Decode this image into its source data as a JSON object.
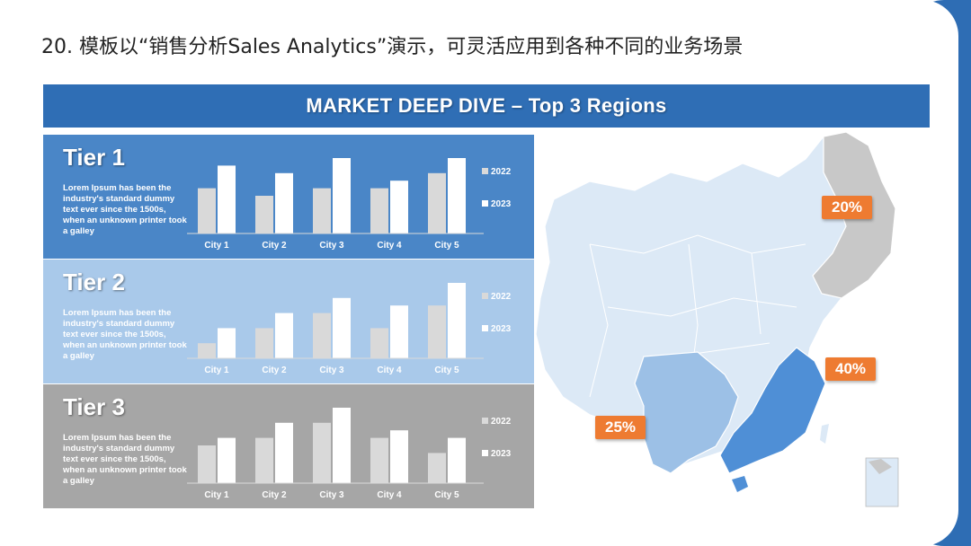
{
  "page": {
    "title": "20. 模板以“销售分析Sales Analytics”演示，可灵活应用到各种不同的业务场景"
  },
  "header": {
    "title": "MARKET DEEP DIVE – Top 3 Regions"
  },
  "colors": {
    "accent": "#2f6eb5",
    "tier1_bg": "#4a86c7",
    "tier2_bg": "#a9c9ea",
    "tier3_bg": "#a6a6a6",
    "bar_2022": "#d9d9d9",
    "bar_2023": "#ffffff",
    "callout": "#ee7b31",
    "map_base": "#dce9f6",
    "map_north": "#c8c8c8",
    "map_east": "#4f8fd6",
    "map_south": "#9cc0e6"
  },
  "tiers": [
    {
      "title": "Tier 1",
      "description": "Lorem Ipsum has been the industry's standard dummy text ever since the 1500s, when an unknown printer took a galley"
    },
    {
      "title": "Tier 2",
      "description": "Lorem Ipsum has been the industry's standard dummy text ever since the 1500s, when an unknown printer took a galley"
    },
    {
      "title": "Tier 3",
      "description": "Lorem Ipsum has been the industry's standard dummy text ever since the 1500s, when an unknown printer took a galley"
    }
  ],
  "chart_data": [
    {
      "type": "bar",
      "title": "Tier 1",
      "categories": [
        "City 1",
        "City 2",
        "City 3",
        "City 4",
        "City 5"
      ],
      "series": [
        {
          "name": "2022",
          "values": [
            3,
            2.5,
            3,
            3,
            4
          ]
        },
        {
          "name": "2023",
          "values": [
            4.5,
            4,
            5,
            3.5,
            5
          ]
        }
      ],
      "ylim": [
        0,
        5
      ],
      "legend": "right"
    },
    {
      "type": "bar",
      "title": "Tier 2",
      "categories": [
        "City 1",
        "City 2",
        "City 3",
        "City 4",
        "City 5"
      ],
      "series": [
        {
          "name": "2022",
          "values": [
            1,
            2,
            3,
            2,
            3.5
          ]
        },
        {
          "name": "2023",
          "values": [
            2,
            3,
            4,
            3.5,
            5
          ]
        }
      ],
      "ylim": [
        0,
        5
      ],
      "legend": "right"
    },
    {
      "type": "bar",
      "title": "Tier 3",
      "categories": [
        "City 1",
        "City 2",
        "City 3",
        "City 4",
        "City 5"
      ],
      "series": [
        {
          "name": "2022",
          "values": [
            2.5,
            3,
            4,
            3,
            2
          ]
        },
        {
          "name": "2023",
          "values": [
            3,
            4,
            5,
            3.5,
            3
          ]
        }
      ],
      "ylim": [
        0,
        5
      ],
      "legend": "right"
    }
  ],
  "map": {
    "callouts": {
      "north": "20%",
      "east": "40%",
      "south": "25%"
    }
  }
}
